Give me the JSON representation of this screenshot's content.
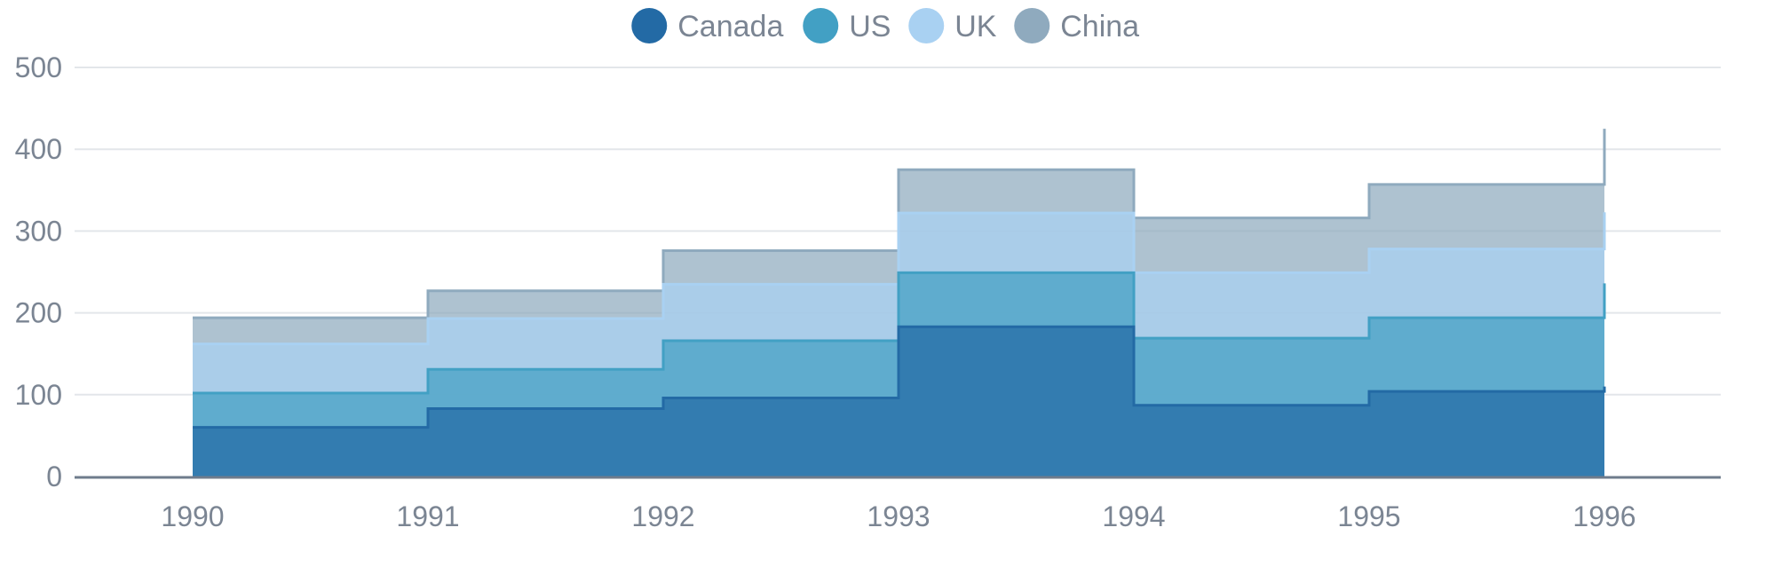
{
  "chart_data": {
    "type": "area",
    "step": true,
    "stacked": true,
    "x": [
      "1990",
      "1991",
      "1992",
      "1993",
      "1994",
      "1995",
      "1996"
    ],
    "series": [
      {
        "name": "Canada",
        "color": "#236aa5",
        "values": [
          60,
          83,
          96,
          183,
          87,
          104,
          110
        ]
      },
      {
        "name": "US",
        "color": "#42a0c4",
        "values": [
          42,
          48,
          70,
          66,
          82,
          90,
          126
        ]
      },
      {
        "name": "UK",
        "color": "#a9d1f2",
        "values": [
          60,
          62,
          69,
          73,
          80,
          84,
          87
        ]
      },
      {
        "name": "China",
        "color": "#8faabe",
        "values": [
          32,
          34,
          41,
          53,
          67,
          79,
          102
        ]
      }
    ],
    "ylim": [
      0,
      500
    ],
    "yticks": [
      "0",
      "100",
      "200",
      "300",
      "400",
      "500"
    ],
    "grid": true,
    "legend": "top-center",
    "title": "",
    "xlabel": "",
    "ylabel": ""
  }
}
